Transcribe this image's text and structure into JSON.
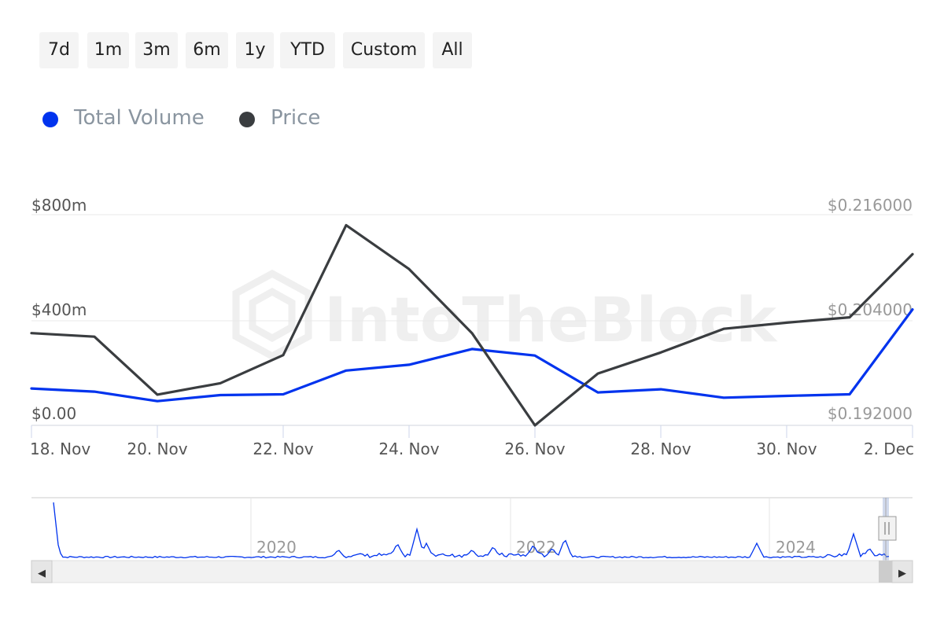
{
  "range_selector": {
    "buttons": [
      "7d",
      "1m",
      "3m",
      "6m",
      "1y",
      "YTD",
      "Custom",
      "All"
    ]
  },
  "legend": [
    {
      "label": "Total Volume",
      "color": "#0033ee"
    },
    {
      "label": "Price",
      "color": "#3a3d40"
    }
  ],
  "watermark": "IntoTheBlock",
  "chart_data": {
    "type": "line",
    "title": "",
    "grid": true,
    "legend_position": "top-left",
    "x": [
      "18. Nov",
      "19. Nov",
      "20. Nov",
      "21. Nov",
      "22. Nov",
      "23. Nov",
      "24. Nov",
      "25. Nov",
      "26. Nov",
      "27. Nov",
      "28. Nov",
      "29. Nov",
      "30. Nov",
      "1. Dec",
      "2. Dec"
    ],
    "x_tick_labels": [
      "18. Nov",
      "20. Nov",
      "22. Nov",
      "24. Nov",
      "26. Nov",
      "28. Nov",
      "30. Nov",
      "2. Dec"
    ],
    "y_left": {
      "ticks": [
        "$0.00",
        "$400m",
        "$800m"
      ],
      "range": [
        0,
        800
      ]
    },
    "y_right": {
      "ticks": [
        "$0.192000",
        "$0.204000",
        "$0.216000"
      ],
      "range": [
        0.192,
        0.216
      ]
    },
    "series": [
      {
        "name": "Total Volume",
        "axis": "left",
        "unit": "millions USD",
        "color": "#0033ee",
        "values": [
          140,
          128,
          92,
          115,
          118,
          208,
          230,
          290,
          265,
          125,
          137,
          105,
          112,
          118,
          440
        ]
      },
      {
        "name": "Price",
        "axis": "right",
        "unit": "USD",
        "color": "#3a3d40",
        "values": [
          0.2025,
          0.2021,
          0.1955,
          0.1968,
          0.2,
          0.2148,
          0.2098,
          0.2025,
          0.192,
          0.1979,
          0.2003,
          0.203,
          0.2037,
          0.2043,
          0.2115
        ]
      }
    ]
  },
  "navigator": {
    "year_labels": [
      "2020",
      "2022",
      "2024"
    ],
    "scroll_left_arrow": "◀",
    "scroll_right_arrow": "▶"
  }
}
